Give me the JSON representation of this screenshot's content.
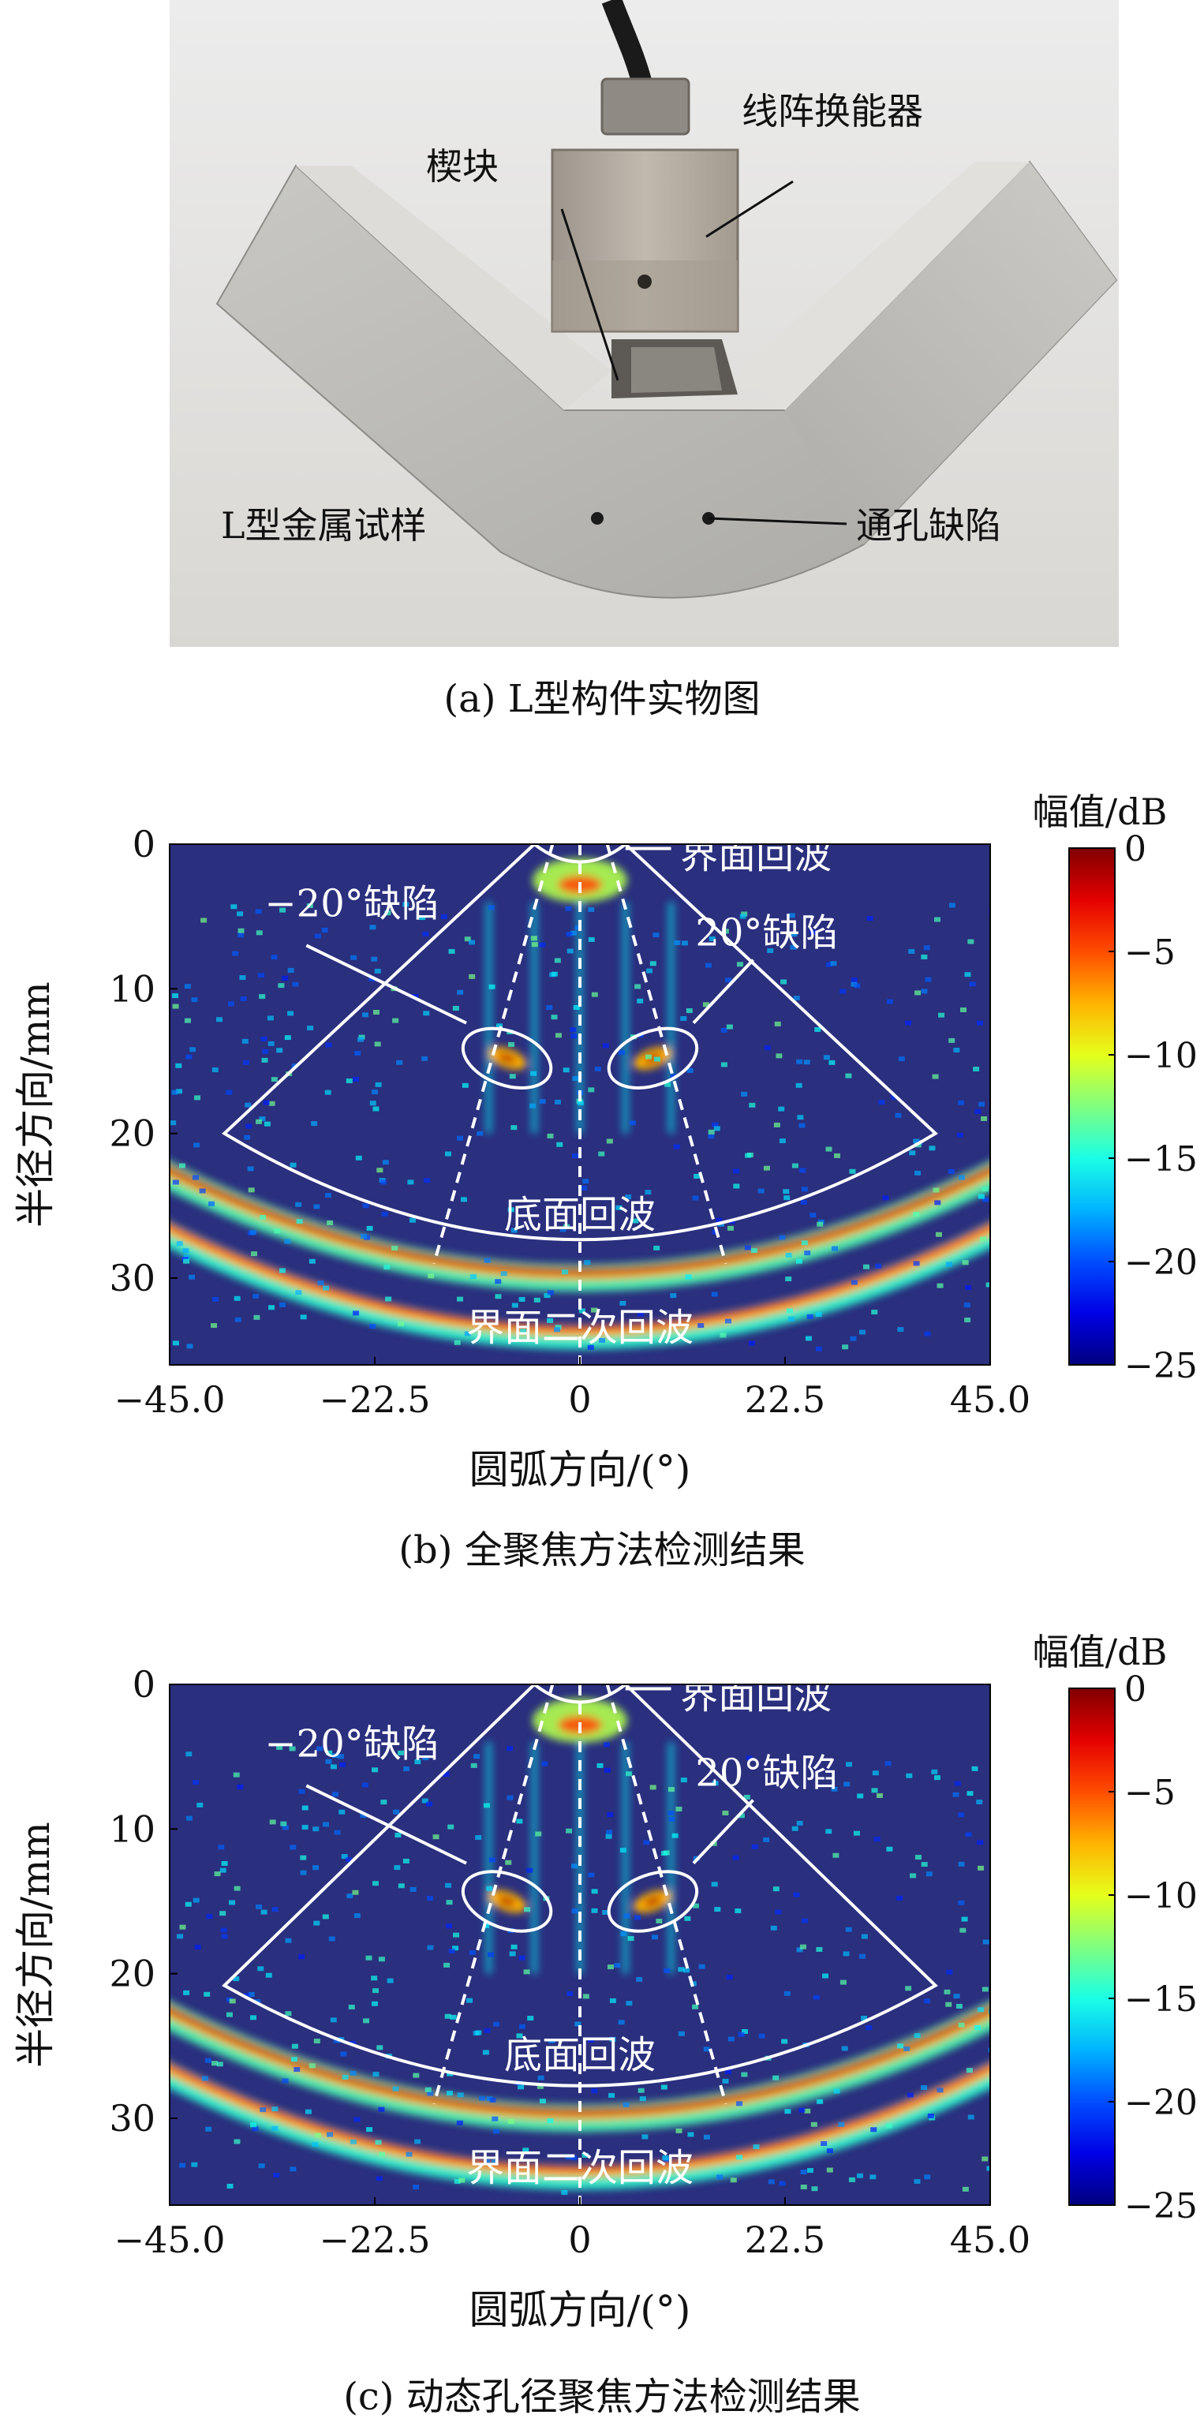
{
  "panel_a": {
    "labels": {
      "transducer": "线阵换能器",
      "wedge": "楔块",
      "specimen": "L型金属试样",
      "defect": "通孔缺陷"
    },
    "caption": "(a) L型构件实物图"
  },
  "panel_b": {
    "caption": "(b) 全聚焦方法检测结果"
  },
  "panel_c": {
    "caption": "(c) 动态孔径聚焦方法检测结果"
  },
  "colors": {
    "background_field": "#2a2f7e",
    "annotation": "#ffffff"
  },
  "chart_data": [
    {
      "type": "heatmap",
      "title": "",
      "xlabel": "圆弧方向/(°)",
      "ylabel": "半径方向/mm",
      "xlim": [
        -45.0,
        45.0
      ],
      "ylim": [
        36,
        0
      ],
      "xticks": [
        -45.0,
        -22.5,
        0,
        22.5,
        45.0
      ],
      "xtick_labels": [
        "−45.0",
        "−22.5",
        "0",
        "22.5",
        "45.0"
      ],
      "yticks": [
        0,
        10,
        20,
        30
      ],
      "ytick_labels": [
        "0",
        "10",
        "20",
        "30"
      ],
      "colorbar": {
        "title": "幅值/dB",
        "range": [
          -25,
          0
        ],
        "ticks": [
          0,
          -5,
          -10,
          -15,
          -20,
          -25
        ],
        "tick_labels": [
          "0",
          "−5",
          "−10",
          "−15",
          "−20",
          "−25"
        ]
      },
      "annotations": [
        "界面回波",
        "−20°缺陷",
        "20°缺陷",
        "底面回波",
        "界面二次回波"
      ],
      "features": [
        {
          "name": "−20°缺陷",
          "x": -8,
          "y": 14.8
        },
        {
          "name": "20°缺陷",
          "x": 8,
          "y": 14.8
        },
        {
          "name": "底面回波",
          "y": 29.5
        },
        {
          "name": "界面二次回波",
          "y": 33.5
        }
      ]
    },
    {
      "type": "heatmap",
      "title": "",
      "xlabel": "圆弧方向/(°)",
      "ylabel": "半径方向/mm",
      "xlim": [
        -45.0,
        45.0
      ],
      "ylim": [
        36,
        0
      ],
      "xticks": [
        -45.0,
        -22.5,
        0,
        22.5,
        45.0
      ],
      "xtick_labels": [
        "−45.0",
        "−22.5",
        "0",
        "22.5",
        "45.0"
      ],
      "yticks": [
        0,
        10,
        20,
        30
      ],
      "ytick_labels": [
        "0",
        "10",
        "20",
        "30"
      ],
      "colorbar": {
        "title": "幅值/dB",
        "range": [
          -25,
          0
        ],
        "ticks": [
          0,
          -5,
          -10,
          -15,
          -20,
          -25
        ],
        "tick_labels": [
          "0",
          "−5",
          "−10",
          "−15",
          "−20",
          "−25"
        ]
      },
      "annotations": [
        "界面回波",
        "−20°缺陷",
        "20°缺陷",
        "底面回波",
        "界面二次回波"
      ],
      "features": [
        {
          "name": "−20°缺陷",
          "x": -8,
          "y": 15.0
        },
        {
          "name": "20°缺陷",
          "x": 8,
          "y": 15.0
        },
        {
          "name": "底面回波",
          "y": 29.5
        },
        {
          "name": "界面二次回波",
          "y": 33.5
        }
      ]
    }
  ]
}
